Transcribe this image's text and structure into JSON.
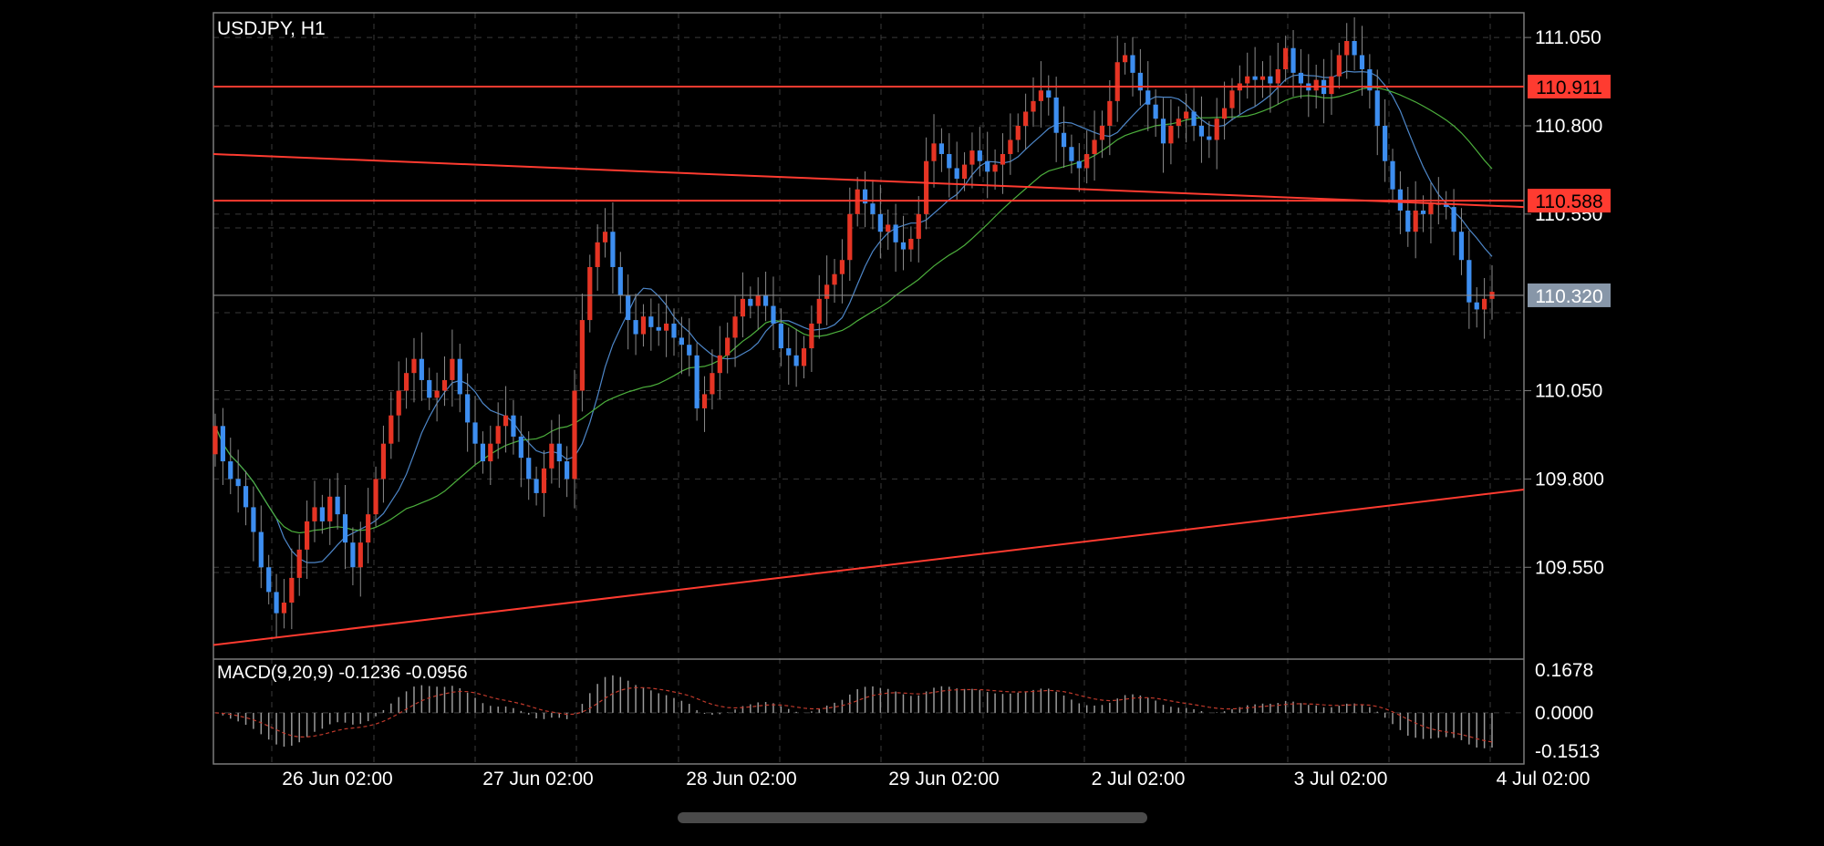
{
  "symbol_label": "USDJPY, H1",
  "colors": {
    "background": "#000000",
    "frame": "#7a7a7a",
    "grid": "#3a3a3a",
    "bull_candle": "#e53424",
    "bear_candle": "#3d8ef0",
    "trendline": "#ff3b30",
    "ma_fast": "#4d86c8",
    "ma_slow": "#4caf3c",
    "price_tag_current": "#8796a8",
    "macd_hist": "#9a9a9a",
    "macd_signal": "#c0392b"
  },
  "chart_data": [
    {
      "type": "candlestick",
      "title": "USDJPY, H1",
      "ylim": [
        109.29,
        111.12
      ],
      "y_ticks": [
        "111.050",
        "110.800",
        "110.550",
        "110.050",
        "109.800",
        "109.550"
      ],
      "x_ticks": [
        "26 Jun 02:00",
        "27 Jun 02:00",
        "28 Jun 02:00",
        "29 Jun 02:00",
        "2 Jul 02:00",
        "3 Jul 02:00",
        "4 Jul 02:00"
      ],
      "grid": true,
      "horizontal_levels": [
        {
          "value": 110.911,
          "label": "110.911",
          "color": "#ff3b30",
          "tag": "red"
        },
        {
          "value": 110.588,
          "label": "110.588",
          "color": "#ff3b30",
          "tag": "red"
        },
        {
          "value": 110.32,
          "label": "110.320",
          "color": "#8a8a8a",
          "tag": "gray"
        }
      ],
      "trendlines": [
        {
          "from": [
            0,
            110.72
          ],
          "to": [
            1,
            110.57
          ]
        },
        {
          "from": [
            0,
            109.33
          ],
          "to": [
            1,
            109.77
          ]
        }
      ],
      "close_path": [
        109.95,
        109.85,
        109.8,
        109.78,
        109.72,
        109.65,
        109.55,
        109.48,
        109.42,
        109.45,
        109.52,
        109.6,
        109.68,
        109.72,
        109.68,
        109.75,
        109.7,
        109.62,
        109.55,
        109.62,
        109.7,
        109.8,
        109.9,
        109.98,
        110.05,
        110.1,
        110.14,
        110.08,
        110.03,
        110.05,
        110.08,
        110.14,
        110.04,
        109.96,
        109.9,
        109.85,
        109.9,
        109.95,
        109.98,
        109.92,
        109.86,
        109.8,
        109.76,
        109.83,
        109.9,
        109.85,
        109.8,
        110.05,
        110.25,
        110.4,
        110.47,
        110.5,
        110.4,
        110.32,
        110.25,
        110.21,
        110.26,
        110.23,
        110.22,
        110.24,
        110.2,
        110.18,
        110.15,
        110.0,
        110.04,
        110.1,
        110.15,
        110.2,
        110.26,
        110.31,
        110.29,
        110.32,
        110.29,
        110.24,
        110.17,
        110.15,
        110.12,
        110.17,
        110.24,
        110.31,
        110.35,
        110.38,
        110.42,
        110.55,
        110.62,
        110.58,
        110.55,
        110.5,
        110.52,
        110.47,
        110.45,
        110.48,
        110.55,
        110.7,
        110.75,
        110.72,
        110.68,
        110.65,
        110.69,
        110.73,
        110.7,
        110.67,
        110.69,
        110.72,
        110.76,
        110.8,
        110.84,
        110.87,
        110.9,
        110.88,
        110.78,
        110.74,
        110.7,
        110.68,
        110.72,
        110.76,
        110.8,
        110.87,
        110.98,
        111.0,
        110.95,
        110.9,
        110.86,
        110.82,
        110.75,
        110.8,
        110.82,
        110.84,
        110.8,
        110.77,
        110.76,
        110.82,
        110.85,
        110.9,
        110.92,
        110.94,
        110.93,
        110.94,
        110.92,
        110.96,
        111.02,
        110.95,
        110.92,
        110.9,
        110.93,
        110.89,
        110.94,
        111.0,
        111.04,
        111.0,
        110.96,
        110.9,
        110.8,
        110.7,
        110.62,
        110.56,
        110.5,
        110.56,
        110.55,
        110.58,
        110.58,
        110.57,
        110.5,
        110.42,
        110.3,
        110.28,
        110.31,
        110.33
      ]
    },
    {
      "type": "bar",
      "title": "MACD(9,20,9) -0.1236 -0.0956",
      "ylim": [
        -0.18,
        0.19
      ],
      "y_ticks": [
        "0.1678",
        "0.0000",
        "-0.1513"
      ],
      "macd_value": "-0.1236",
      "signal_value": "-0.0956"
    }
  ]
}
